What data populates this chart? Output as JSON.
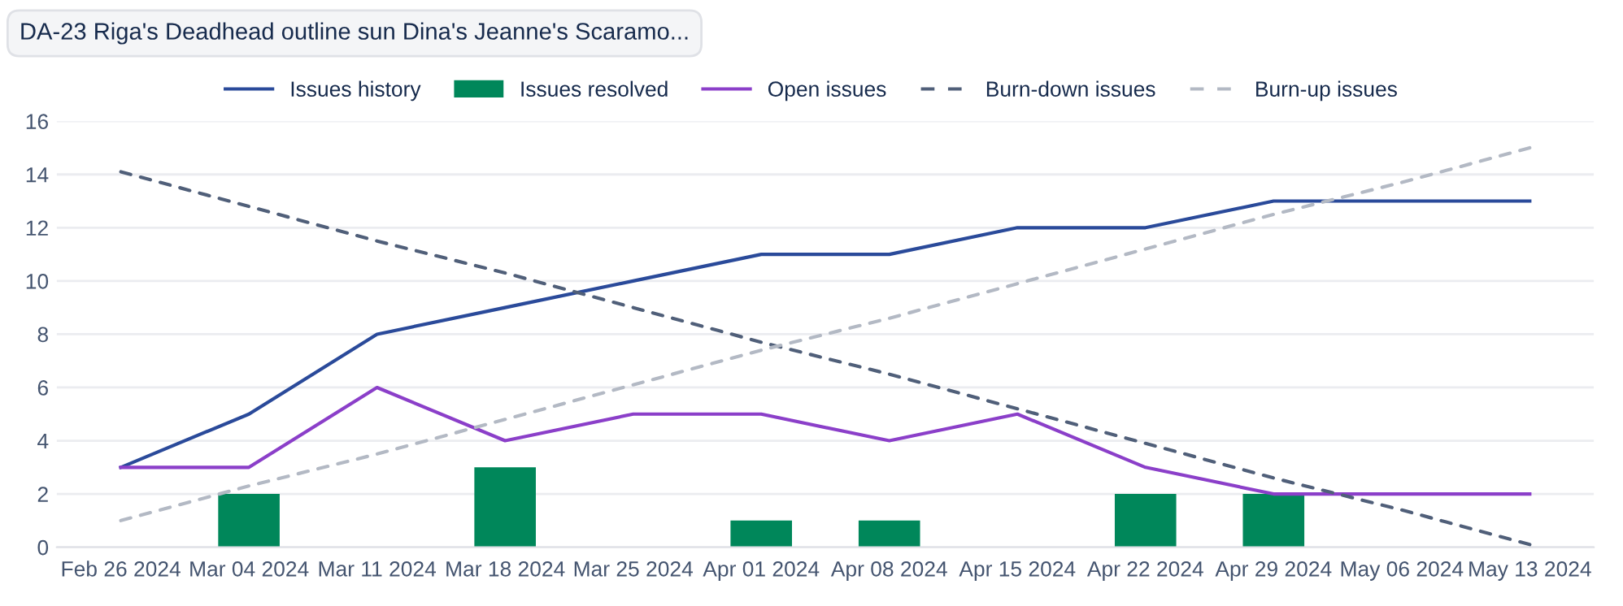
{
  "chart_data": {
    "type": "line",
    "annotations": [
      "DA-23 Riga's Deadhead outline sun Dina's Jeanne's Scaramo..."
    ],
    "categories": [
      "Feb 26 2024",
      "Mar 04 2024",
      "Mar 11 2024",
      "Mar 18 2024",
      "Mar 25 2024",
      "Apr 01 2024",
      "Apr 08 2024",
      "Apr 15 2024",
      "Apr 22 2024",
      "Apr 29 2024",
      "May 06 2024",
      "May 13 2024"
    ],
    "series": [
      {
        "name": "Issues history",
        "color": "#2a4a9a",
        "line_style": "solid",
        "values": [
          3,
          5,
          8,
          9,
          10,
          11,
          11,
          12,
          12,
          13,
          13,
          13
        ]
      },
      {
        "name": "Issues resolved",
        "type": "bar",
        "color": "#00875a",
        "values": [
          null,
          2,
          null,
          3,
          null,
          1,
          1,
          null,
          2,
          2,
          null,
          null
        ]
      },
      {
        "name": "Open issues",
        "color": "#8b3fc9",
        "line_style": "solid",
        "values": [
          3,
          3,
          6,
          4,
          5,
          5,
          4,
          5,
          3,
          2,
          2,
          2
        ]
      },
      {
        "name": "Burn-down issues",
        "color": "#505f79",
        "line_style": "dashed",
        "values": [
          14.1,
          12.8,
          11.5,
          10.3,
          9.0,
          7.7,
          6.5,
          5.2,
          3.9,
          2.6,
          1.4,
          0.1
        ]
      },
      {
        "name": "Burn-up issues",
        "color": "#b3b9c4",
        "line_style": "dashed",
        "values": [
          1.0,
          2.3,
          3.5,
          4.8,
          6.1,
          7.4,
          8.6,
          9.9,
          11.2,
          12.5,
          13.7,
          15.0
        ]
      }
    ],
    "ylim": [
      0,
      16
    ],
    "yticks": [
      0,
      2,
      4,
      6,
      8,
      10,
      12,
      14,
      16
    ],
    "grid": "y",
    "legend": "top",
    "marker": "none"
  }
}
